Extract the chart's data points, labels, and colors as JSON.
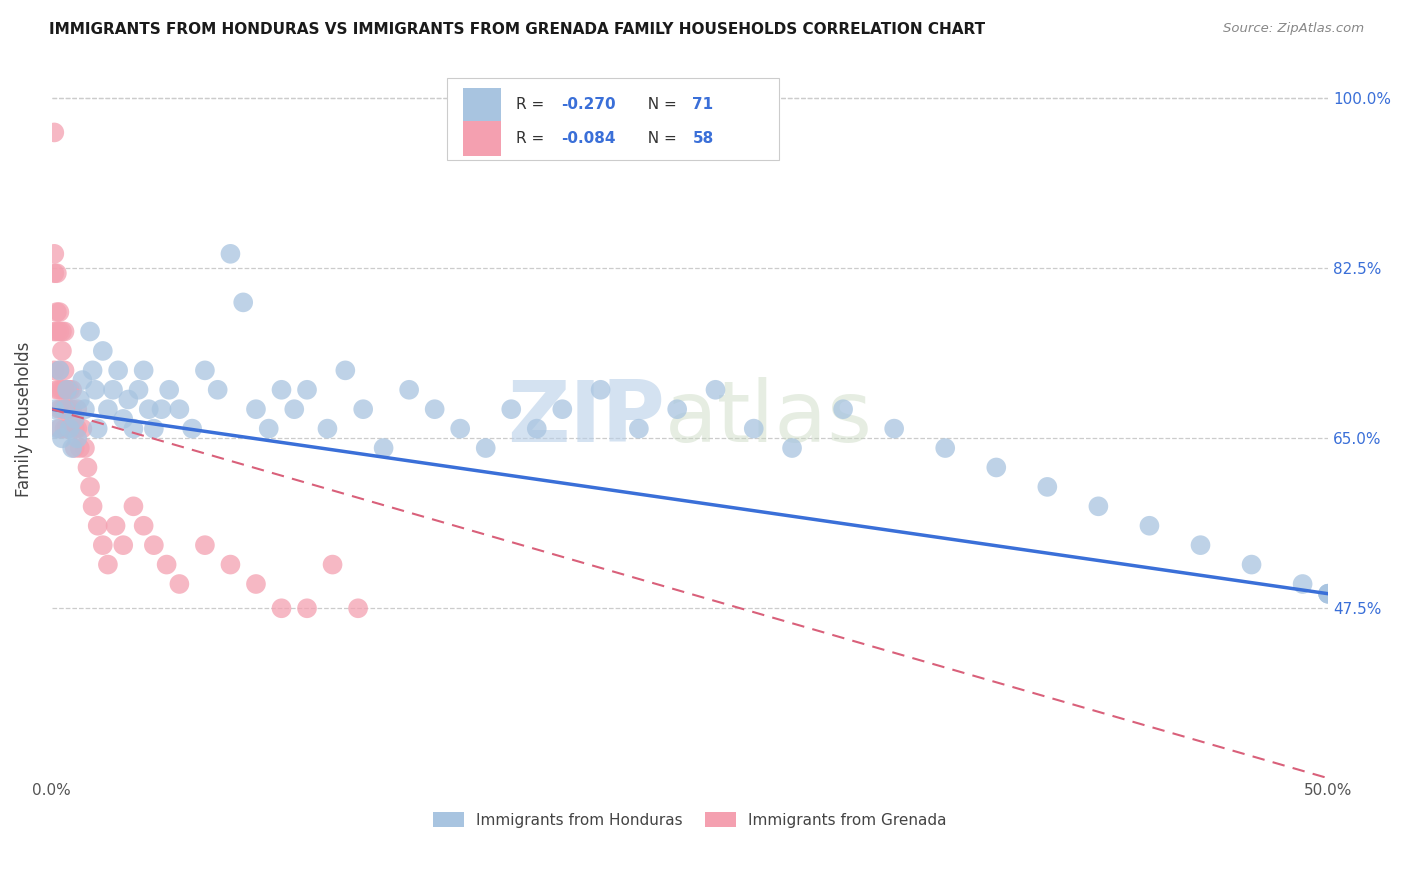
{
  "title": "IMMIGRANTS FROM HONDURAS VS IMMIGRANTS FROM GRENADA FAMILY HOUSEHOLDS CORRELATION CHART",
  "source": "Source: ZipAtlas.com",
  "ylabel": "Family Households",
  "x_min": 0.0,
  "x_max": 0.5,
  "y_min": 0.3,
  "y_max": 1.04,
  "y_ticks": [
    0.475,
    0.65,
    0.825,
    1.0
  ],
  "y_tick_labels": [
    "47.5%",
    "65.0%",
    "82.5%",
    "100.0%"
  ],
  "x_tick_labels": [
    "0.0%",
    "",
    "",
    "",
    "",
    "50.0%"
  ],
  "x_ticks": [
    0.0,
    0.1,
    0.2,
    0.3,
    0.4,
    0.5
  ],
  "color_honduras": "#a8c4e0",
  "color_grenada": "#f4a0b0",
  "color_line_honduras": "#3a6fd8",
  "color_line_grenada": "#d9607a",
  "watermark_zip": "ZIP",
  "watermark_atlas": "atlas",
  "background_color": "#ffffff",
  "honduras_x": [
    0.001,
    0.002,
    0.003,
    0.004,
    0.005,
    0.006,
    0.007,
    0.008,
    0.009,
    0.01,
    0.011,
    0.012,
    0.013,
    0.015,
    0.016,
    0.017,
    0.018,
    0.02,
    0.022,
    0.024,
    0.026,
    0.028,
    0.03,
    0.032,
    0.034,
    0.036,
    0.038,
    0.04,
    0.043,
    0.046,
    0.05,
    0.055,
    0.06,
    0.065,
    0.07,
    0.075,
    0.08,
    0.085,
    0.09,
    0.095,
    0.1,
    0.108,
    0.115,
    0.122,
    0.13,
    0.14,
    0.15,
    0.16,
    0.17,
    0.18,
    0.19,
    0.2,
    0.215,
    0.23,
    0.245,
    0.26,
    0.275,
    0.29,
    0.31,
    0.33,
    0.35,
    0.37,
    0.39,
    0.41,
    0.43,
    0.45,
    0.47,
    0.49,
    0.5,
    0.5,
    0.5
  ],
  "honduras_y": [
    0.68,
    0.66,
    0.72,
    0.65,
    0.68,
    0.7,
    0.66,
    0.64,
    0.67,
    0.65,
    0.69,
    0.71,
    0.68,
    0.76,
    0.72,
    0.7,
    0.66,
    0.74,
    0.68,
    0.7,
    0.72,
    0.67,
    0.69,
    0.66,
    0.7,
    0.72,
    0.68,
    0.66,
    0.68,
    0.7,
    0.68,
    0.66,
    0.72,
    0.7,
    0.84,
    0.79,
    0.68,
    0.66,
    0.7,
    0.68,
    0.7,
    0.66,
    0.72,
    0.68,
    0.64,
    0.7,
    0.68,
    0.66,
    0.64,
    0.68,
    0.66,
    0.68,
    0.7,
    0.66,
    0.68,
    0.7,
    0.66,
    0.64,
    0.68,
    0.66,
    0.64,
    0.62,
    0.6,
    0.58,
    0.56,
    0.54,
    0.52,
    0.5,
    0.49,
    0.49,
    0.49
  ],
  "grenada_x": [
    0.001,
    0.001,
    0.001,
    0.001,
    0.001,
    0.002,
    0.002,
    0.002,
    0.002,
    0.003,
    0.003,
    0.003,
    0.003,
    0.003,
    0.003,
    0.004,
    0.004,
    0.004,
    0.004,
    0.005,
    0.005,
    0.005,
    0.005,
    0.005,
    0.006,
    0.006,
    0.006,
    0.007,
    0.007,
    0.008,
    0.008,
    0.009,
    0.009,
    0.01,
    0.01,
    0.011,
    0.012,
    0.013,
    0.014,
    0.015,
    0.016,
    0.018,
    0.02,
    0.022,
    0.025,
    0.028,
    0.032,
    0.036,
    0.04,
    0.045,
    0.05,
    0.06,
    0.07,
    0.08,
    0.09,
    0.1,
    0.11,
    0.12
  ],
  "grenada_y": [
    0.965,
    0.84,
    0.82,
    0.76,
    0.72,
    0.82,
    0.78,
    0.76,
    0.7,
    0.78,
    0.76,
    0.72,
    0.7,
    0.68,
    0.66,
    0.76,
    0.74,
    0.7,
    0.68,
    0.76,
    0.72,
    0.7,
    0.68,
    0.66,
    0.7,
    0.68,
    0.66,
    0.7,
    0.68,
    0.7,
    0.68,
    0.66,
    0.64,
    0.68,
    0.66,
    0.64,
    0.66,
    0.64,
    0.62,
    0.6,
    0.58,
    0.56,
    0.54,
    0.52,
    0.56,
    0.54,
    0.58,
    0.56,
    0.54,
    0.52,
    0.5,
    0.54,
    0.52,
    0.5,
    0.475,
    0.475,
    0.52,
    0.475
  ],
  "honduras_line_x0": 0.0,
  "honduras_line_x1": 0.5,
  "honduras_line_y0": 0.68,
  "honduras_line_y1": 0.49,
  "grenada_line_x0": 0.0,
  "grenada_line_x1": 0.5,
  "grenada_line_y0": 0.68,
  "grenada_line_y1": 0.3
}
